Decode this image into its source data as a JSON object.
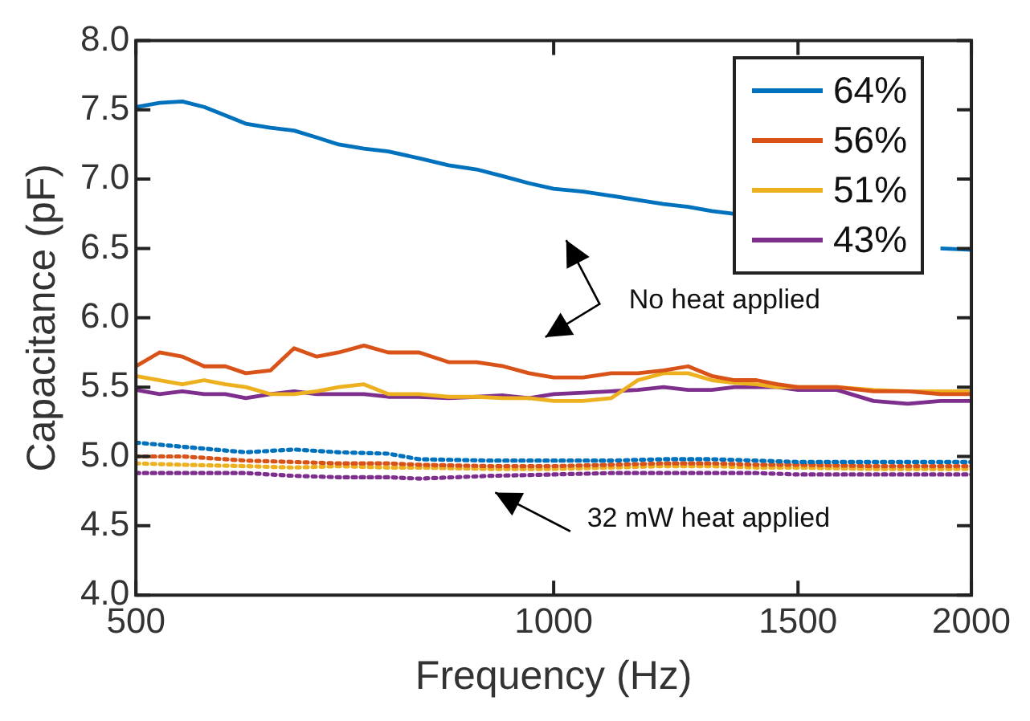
{
  "chart_data": {
    "type": "line",
    "xlabel": "Frequency (Hz)",
    "ylabel": "Capacitance (pF)",
    "log": "x",
    "xlim": [
      500,
      2000
    ],
    "xticks": [
      500,
      1000,
      1500,
      2000
    ],
    "ylim": [
      4,
      8
    ],
    "yticks": [
      {
        "value": 4,
        "label": "4.0"
      },
      {
        "value": 4.5,
        "label": "4.5"
      },
      {
        "value": 5,
        "label": "5.0"
      },
      {
        "value": 5.5,
        "label": "5.5"
      },
      {
        "value": 6,
        "label": "6.0"
      },
      {
        "value": 6.5,
        "label": "6.5"
      },
      {
        "value": 7,
        "label": "7.0"
      },
      {
        "value": 7.5,
        "label": "7.5"
      },
      {
        "value": 8,
        "label": "8.0"
      }
    ],
    "grid": false,
    "legend": "top right",
    "marker": "none",
    "line_style": "solid",
    "x": [
      500,
      520,
      540,
      560,
      580,
      600,
      625,
      650,
      675,
      700,
      730,
      760,
      800,
      840,
      880,
      920,
      960,
      1000,
      1050,
      1100,
      1150,
      1200,
      1250,
      1300,
      1350,
      1400,
      1450,
      1500,
      1600,
      1700,
      1800,
      1900,
      2000
    ],
    "series": [
      {
        "name": "64%",
        "color": "#0072bd",
        "values": [
          7.52,
          7.55,
          7.56,
          7.52,
          7.46,
          7.4,
          7.37,
          7.35,
          7.3,
          7.25,
          7.22,
          7.2,
          7.15,
          7.1,
          7.07,
          7.02,
          6.97,
          6.93,
          6.91,
          6.88,
          6.85,
          6.82,
          6.8,
          6.77,
          6.75,
          null,
          null,
          null,
          null,
          null,
          null,
          6.5,
          6.49
        ]
      },
      {
        "name": "56%",
        "color": "#d95319",
        "values": [
          5.65,
          5.75,
          5.72,
          5.65,
          5.65,
          5.6,
          5.62,
          5.78,
          5.72,
          5.75,
          5.8,
          5.75,
          5.75,
          5.68,
          5.68,
          5.65,
          5.6,
          5.57,
          5.57,
          5.6,
          5.6,
          5.62,
          5.65,
          5.58,
          5.55,
          5.55,
          5.52,
          5.5,
          5.5,
          5.47,
          5.47,
          5.45,
          5.45
        ]
      },
      {
        "name": "51%",
        "color": "#edb120",
        "values": [
          5.58,
          5.55,
          5.52,
          5.55,
          5.52,
          5.5,
          5.45,
          5.45,
          5.47,
          5.5,
          5.52,
          5.45,
          5.45,
          5.43,
          5.43,
          5.42,
          5.42,
          5.4,
          5.4,
          5.42,
          5.55,
          5.6,
          5.6,
          5.55,
          5.53,
          5.52,
          5.5,
          5.5,
          5.5,
          5.48,
          5.47,
          5.47,
          5.47
        ]
      },
      {
        "name": "43%",
        "color": "#7e2f8e",
        "values": [
          5.48,
          5.45,
          5.47,
          5.45,
          5.45,
          5.42,
          5.45,
          5.47,
          5.45,
          5.45,
          5.45,
          5.43,
          5.43,
          5.42,
          5.43,
          5.44,
          5.42,
          5.45,
          5.46,
          5.47,
          5.48,
          5.5,
          5.48,
          5.48,
          5.5,
          5.5,
          5.5,
          5.48,
          5.48,
          5.4,
          5.38,
          5.4,
          5.4
        ]
      },
      {
        "color": "#0072bd",
        "line_style": "dotted",
        "x": [
          500,
          540,
          600,
          650,
          700,
          760,
          800,
          900,
          1000,
          1100,
          1200,
          1300,
          1400,
          1500,
          1700,
          2000
        ],
        "values": [
          5.1,
          5.07,
          5.03,
          5.05,
          5.03,
          5.02,
          4.98,
          4.97,
          4.97,
          4.97,
          4.98,
          4.98,
          4.97,
          4.96,
          4.96,
          4.96
        ]
      },
      {
        "color": "#d95319",
        "line_style": "dotted",
        "x": [
          500,
          540,
          600,
          650,
          700,
          760,
          800,
          900,
          1000,
          1100,
          1200,
          1300,
          1400,
          1500,
          1700,
          2000
        ],
        "values": [
          5.0,
          5.0,
          4.97,
          4.96,
          4.95,
          4.95,
          4.94,
          4.93,
          4.93,
          4.94,
          4.95,
          4.95,
          4.94,
          4.94,
          4.93,
          4.93
        ]
      },
      {
        "color": "#edb120",
        "line_style": "dotted",
        "x": [
          500,
          540,
          600,
          650,
          700,
          760,
          800,
          900,
          1000,
          1100,
          1200,
          1300,
          1400,
          1500,
          1700,
          2000
        ],
        "values": [
          4.95,
          4.94,
          4.93,
          4.92,
          4.93,
          4.92,
          4.92,
          4.91,
          4.91,
          4.92,
          4.93,
          4.93,
          4.92,
          4.92,
          4.91,
          4.91
        ]
      },
      {
        "color": "#7e2f8e",
        "line_style": "dotted",
        "x": [
          500,
          540,
          600,
          650,
          700,
          760,
          800,
          900,
          1000,
          1100,
          1200,
          1300,
          1400,
          1500,
          1700,
          2000
        ],
        "values": [
          4.88,
          4.88,
          4.88,
          4.86,
          4.85,
          4.85,
          4.84,
          4.86,
          4.87,
          4.88,
          4.88,
          4.88,
          4.88,
          4.87,
          4.87,
          4.87
        ]
      }
    ],
    "annotations": [
      "No heat applied",
      "32 mW heat applied"
    ]
  }
}
